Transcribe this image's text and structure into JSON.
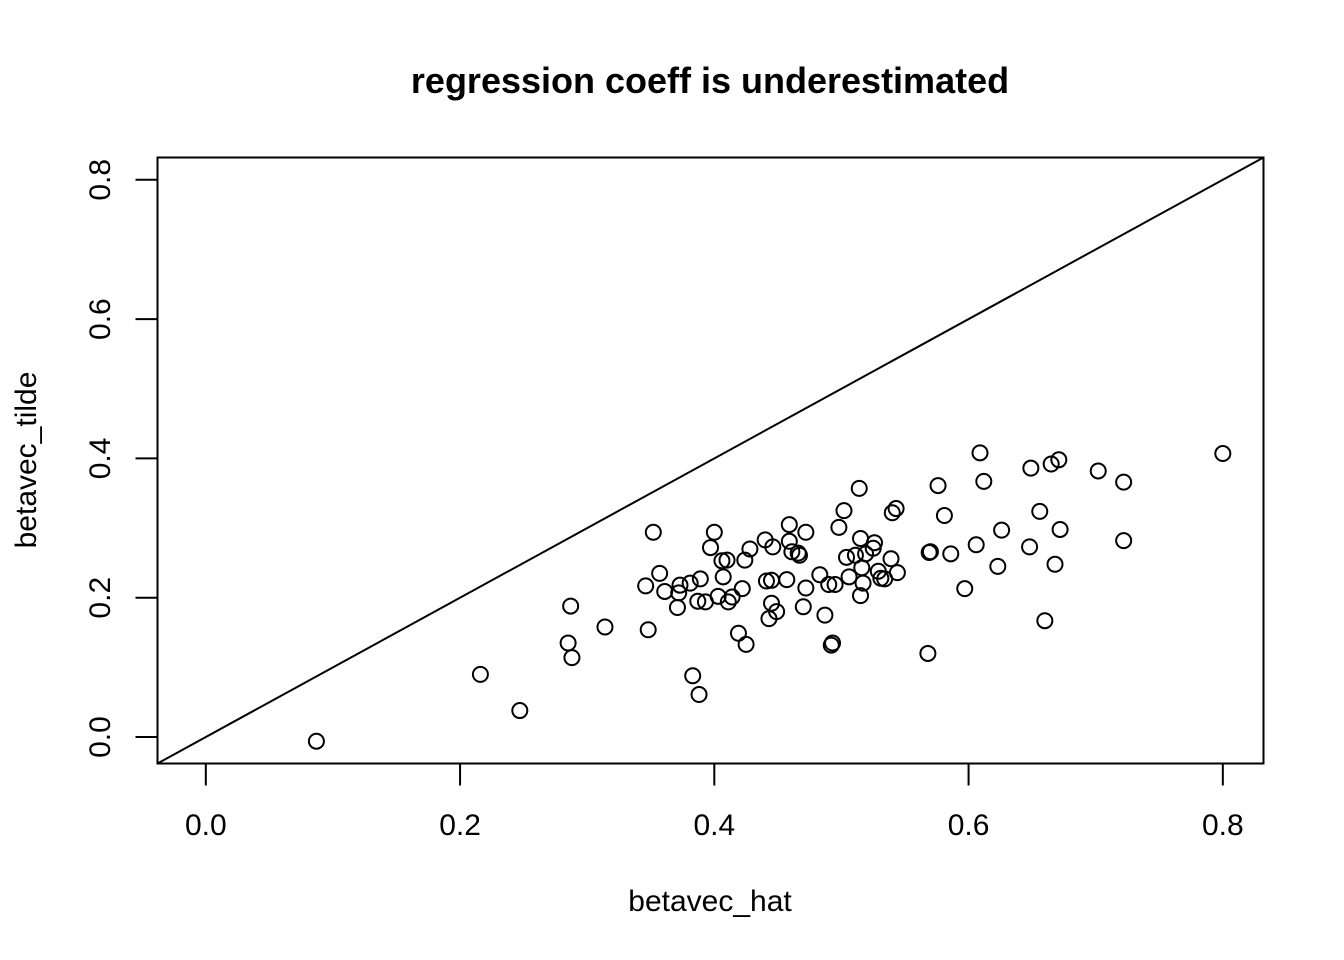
{
  "chart_data": {
    "type": "scatter",
    "title": "regression coeff is underestimated",
    "xlabel": "betavec_hat",
    "ylabel": "betavec_tilde",
    "xlim": [
      -0.038,
      0.832
    ],
    "ylim": [
      -0.038,
      0.832
    ],
    "xticks": [
      0.0,
      0.2,
      0.4,
      0.6,
      0.8
    ],
    "yticks": [
      0.0,
      0.2,
      0.4,
      0.6,
      0.8
    ],
    "xtick_labels": [
      "0.0",
      "0.2",
      "0.4",
      "0.6",
      "0.8"
    ],
    "ytick_labels": [
      "0.0",
      "0.2",
      "0.4",
      "0.6",
      "0.8"
    ],
    "reference_line": {
      "intercept": 0,
      "slope": 1
    },
    "grid": false,
    "marker": "open-circle",
    "points": [
      [
        0.087,
        -0.006
      ],
      [
        0.216,
        0.09
      ],
      [
        0.247,
        0.038
      ],
      [
        0.285,
        0.135
      ],
      [
        0.287,
        0.188
      ],
      [
        0.288,
        0.114
      ],
      [
        0.314,
        0.158
      ],
      [
        0.346,
        0.217
      ],
      [
        0.348,
        0.154
      ],
      [
        0.352,
        0.294
      ],
      [
        0.357,
        0.235
      ],
      [
        0.361,
        0.209
      ],
      [
        0.371,
        0.186
      ],
      [
        0.372,
        0.207
      ],
      [
        0.373,
        0.218
      ],
      [
        0.381,
        0.221
      ],
      [
        0.383,
        0.088
      ],
      [
        0.387,
        0.195
      ],
      [
        0.388,
        0.061
      ],
      [
        0.389,
        0.227
      ],
      [
        0.393,
        0.194
      ],
      [
        0.397,
        0.272
      ],
      [
        0.4,
        0.294
      ],
      [
        0.403,
        0.202
      ],
      [
        0.406,
        0.253
      ],
      [
        0.407,
        0.23
      ],
      [
        0.41,
        0.254
      ],
      [
        0.411,
        0.194
      ],
      [
        0.414,
        0.201
      ],
      [
        0.419,
        0.149
      ],
      [
        0.422,
        0.213
      ],
      [
        0.424,
        0.254
      ],
      [
        0.425,
        0.133
      ],
      [
        0.428,
        0.27
      ],
      [
        0.44,
        0.283
      ],
      [
        0.441,
        0.224
      ],
      [
        0.443,
        0.17
      ],
      [
        0.445,
        0.225
      ],
      [
        0.445,
        0.192
      ],
      [
        0.446,
        0.273
      ],
      [
        0.449,
        0.18
      ],
      [
        0.457,
        0.226
      ],
      [
        0.459,
        0.305
      ],
      [
        0.459,
        0.281
      ],
      [
        0.461,
        0.266
      ],
      [
        0.466,
        0.264
      ],
      [
        0.467,
        0.261
      ],
      [
        0.47,
        0.187
      ],
      [
        0.472,
        0.214
      ],
      [
        0.472,
        0.294
      ],
      [
        0.483,
        0.233
      ],
      [
        0.487,
        0.175
      ],
      [
        0.49,
        0.219
      ],
      [
        0.492,
        0.132
      ],
      [
        0.493,
        0.135
      ],
      [
        0.495,
        0.219
      ],
      [
        0.498,
        0.301
      ],
      [
        0.502,
        0.325
      ],
      [
        0.504,
        0.258
      ],
      [
        0.506,
        0.23
      ],
      [
        0.511,
        0.261
      ],
      [
        0.514,
        0.357
      ],
      [
        0.515,
        0.285
      ],
      [
        0.515,
        0.203
      ],
      [
        0.516,
        0.243
      ],
      [
        0.517,
        0.221
      ],
      [
        0.519,
        0.263
      ],
      [
        0.525,
        0.271
      ],
      [
        0.526,
        0.279
      ],
      [
        0.529,
        0.238
      ],
      [
        0.531,
        0.228
      ],
      [
        0.534,
        0.227
      ],
      [
        0.539,
        0.256
      ],
      [
        0.54,
        0.322
      ],
      [
        0.543,
        0.328
      ],
      [
        0.544,
        0.236
      ],
      [
        0.568,
        0.12
      ],
      [
        0.569,
        0.265
      ],
      [
        0.57,
        0.266
      ],
      [
        0.576,
        0.361
      ],
      [
        0.581,
        0.318
      ],
      [
        0.586,
        0.263
      ],
      [
        0.597,
        0.213
      ],
      [
        0.606,
        0.276
      ],
      [
        0.609,
        0.408
      ],
      [
        0.612,
        0.367
      ],
      [
        0.623,
        0.245
      ],
      [
        0.626,
        0.297
      ],
      [
        0.648,
        0.273
      ],
      [
        0.649,
        0.386
      ],
      [
        0.656,
        0.324
      ],
      [
        0.66,
        0.167
      ],
      [
        0.665,
        0.392
      ],
      [
        0.668,
        0.248
      ],
      [
        0.671,
        0.398
      ],
      [
        0.672,
        0.298
      ],
      [
        0.702,
        0.382
      ],
      [
        0.722,
        0.366
      ],
      [
        0.722,
        0.282
      ],
      [
        0.8,
        0.407
      ]
    ]
  }
}
